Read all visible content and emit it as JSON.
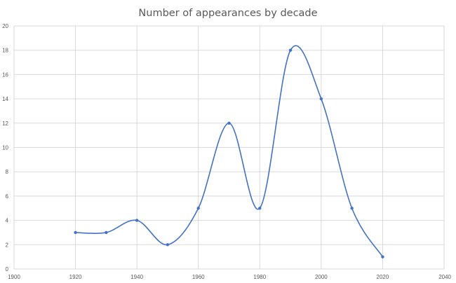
{
  "chart_data": {
    "type": "scatter",
    "title": "Number of appearances by decade",
    "xlabel": "",
    "ylabel": "",
    "xlim": [
      1900,
      2040
    ],
    "ylim": [
      0,
      20
    ],
    "x_ticks": [
      1900,
      1920,
      1940,
      1960,
      1980,
      2000,
      2020,
      2040
    ],
    "y_ticks": [
      0,
      2,
      4,
      6,
      8,
      10,
      12,
      14,
      16,
      18,
      20
    ],
    "x_tick_labels": [
      "1900",
      "1920",
      "1940",
      "1960",
      "1980",
      "2000",
      "2020",
      "2040"
    ],
    "y_tick_labels": [
      "0",
      "2",
      "4",
      "6",
      "8",
      "10",
      "12",
      "14",
      "16",
      "18",
      "20"
    ],
    "smoothed_line": true,
    "markers": true,
    "grid": "both",
    "legend": "none",
    "series": [
      {
        "color": "#4472c4",
        "x": [
          1920,
          1930,
          1940,
          1950,
          1960,
          1970,
          1980,
          1990,
          2000,
          2010,
          2020
        ],
        "y": [
          3,
          3,
          4,
          2,
          5,
          12,
          5,
          18,
          14,
          5,
          1
        ]
      }
    ]
  }
}
